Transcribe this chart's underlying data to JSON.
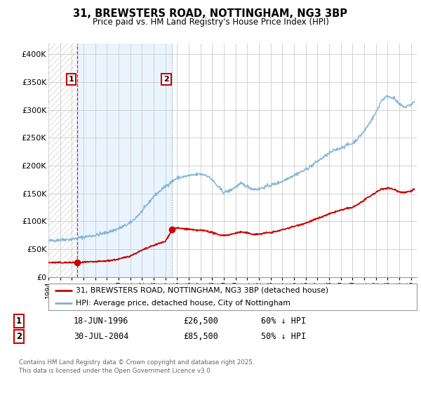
{
  "title": "31, BREWSTERS ROAD, NOTTINGHAM, NG3 3BP",
  "subtitle": "Price paid vs. HM Land Registry's House Price Index (HPI)",
  "bg_color": "#ffffff",
  "plot_bg_color": "#ffffff",
  "grid_color": "#cccccc",
  "red_color": "#cc0000",
  "blue_color": "#7ab0d4",
  "shade_color": "#ddeeff",
  "ylim": [
    0,
    420000
  ],
  "yticks": [
    0,
    50000,
    100000,
    150000,
    200000,
    250000,
    300000,
    350000,
    400000
  ],
  "ytick_labels": [
    "£0",
    "£50K",
    "£100K",
    "£150K",
    "£200K",
    "£250K",
    "£300K",
    "£350K",
    "£400K"
  ],
  "sale1_year": 1996.46,
  "sale1_price": 26500,
  "sale2_year": 2004.58,
  "sale2_price": 85500,
  "legend_line1": "31, BREWSTERS ROAD, NOTTINGHAM, NG3 3BP (detached house)",
  "legend_line2": "HPI: Average price, detached house, City of Nottingham",
  "sale1_date": "18-JUN-1996",
  "sale1_price_label": "£26,500",
  "sale1_pct": "60% ↓ HPI",
  "sale2_date": "30-JUL-2004",
  "sale2_price_label": "£85,500",
  "sale2_pct": "50% ↓ HPI",
  "footnote": "Contains HM Land Registry data © Crown copyright and database right 2025.\nThis data is licensed under the Open Government Licence v3.0.",
  "xmin": 1994.0,
  "xmax": 2025.5,
  "hpi_anchors": [
    [
      1994.0,
      65000
    ],
    [
      1995.0,
      67000
    ],
    [
      1996.0,
      68000
    ],
    [
      1997.0,
      72000
    ],
    [
      1998.0,
      75000
    ],
    [
      1999.0,
      80000
    ],
    [
      2000.0,
      87000
    ],
    [
      2001.0,
      97000
    ],
    [
      2002.0,
      118000
    ],
    [
      2003.0,
      145000
    ],
    [
      2004.0,
      163000
    ],
    [
      2005.0,
      178000
    ],
    [
      2006.0,
      182000
    ],
    [
      2007.0,
      185000
    ],
    [
      2007.5,
      183000
    ],
    [
      2008.0,
      175000
    ],
    [
      2008.5,
      162000
    ],
    [
      2009.0,
      152000
    ],
    [
      2009.5,
      155000
    ],
    [
      2010.0,
      162000
    ],
    [
      2010.5,
      168000
    ],
    [
      2011.0,
      163000
    ],
    [
      2011.5,
      158000
    ],
    [
      2012.0,
      158000
    ],
    [
      2012.5,
      162000
    ],
    [
      2013.0,
      165000
    ],
    [
      2013.5,
      168000
    ],
    [
      2014.0,
      172000
    ],
    [
      2014.5,
      178000
    ],
    [
      2015.0,
      183000
    ],
    [
      2015.5,
      188000
    ],
    [
      2016.0,
      193000
    ],
    [
      2016.5,
      200000
    ],
    [
      2017.0,
      208000
    ],
    [
      2017.5,
      215000
    ],
    [
      2018.0,
      222000
    ],
    [
      2018.5,
      228000
    ],
    [
      2019.0,
      232000
    ],
    [
      2019.5,
      237000
    ],
    [
      2020.0,
      240000
    ],
    [
      2020.5,
      250000
    ],
    [
      2021.0,
      262000
    ],
    [
      2021.5,
      278000
    ],
    [
      2022.0,
      295000
    ],
    [
      2022.5,
      318000
    ],
    [
      2023.0,
      325000
    ],
    [
      2023.5,
      322000
    ],
    [
      2024.0,
      310000
    ],
    [
      2024.5,
      305000
    ],
    [
      2025.0,
      310000
    ],
    [
      2025.3,
      315000
    ]
  ],
  "red_anchors": [
    [
      1994.0,
      26000
    ],
    [
      1995.0,
      26000
    ],
    [
      1996.0,
      26000
    ],
    [
      1996.46,
      26500
    ],
    [
      1997.0,
      26500
    ],
    [
      1998.0,
      27500
    ],
    [
      1999.0,
      29000
    ],
    [
      2000.0,
      32000
    ],
    [
      2001.0,
      38000
    ],
    [
      2002.0,
      48000
    ],
    [
      2003.0,
      57000
    ],
    [
      2004.0,
      64000
    ],
    [
      2004.58,
      85500
    ],
    [
      2005.0,
      88000
    ],
    [
      2005.5,
      87000
    ],
    [
      2006.0,
      86000
    ],
    [
      2006.5,
      84000
    ],
    [
      2007.0,
      84000
    ],
    [
      2007.5,
      83000
    ],
    [
      2008.0,
      80000
    ],
    [
      2008.5,
      76000
    ],
    [
      2009.0,
      75000
    ],
    [
      2009.5,
      76000
    ],
    [
      2010.0,
      79000
    ],
    [
      2010.5,
      81000
    ],
    [
      2011.0,
      79000
    ],
    [
      2011.5,
      77000
    ],
    [
      2012.0,
      77000
    ],
    [
      2012.5,
      79000
    ],
    [
      2013.0,
      80000
    ],
    [
      2013.5,
      82000
    ],
    [
      2014.0,
      85000
    ],
    [
      2014.5,
      88000
    ],
    [
      2015.0,
      91000
    ],
    [
      2015.5,
      94000
    ],
    [
      2016.0,
      97000
    ],
    [
      2016.5,
      101000
    ],
    [
      2017.0,
      105000
    ],
    [
      2017.5,
      109000
    ],
    [
      2018.0,
      113000
    ],
    [
      2018.5,
      117000
    ],
    [
      2019.0,
      120000
    ],
    [
      2019.5,
      123000
    ],
    [
      2020.0,
      125000
    ],
    [
      2020.5,
      131000
    ],
    [
      2021.0,
      138000
    ],
    [
      2021.5,
      145000
    ],
    [
      2022.0,
      152000
    ],
    [
      2022.5,
      158000
    ],
    [
      2023.0,
      160000
    ],
    [
      2023.5,
      158000
    ],
    [
      2024.0,
      153000
    ],
    [
      2024.5,
      152000
    ],
    [
      2025.0,
      155000
    ],
    [
      2025.3,
      158000
    ]
  ]
}
